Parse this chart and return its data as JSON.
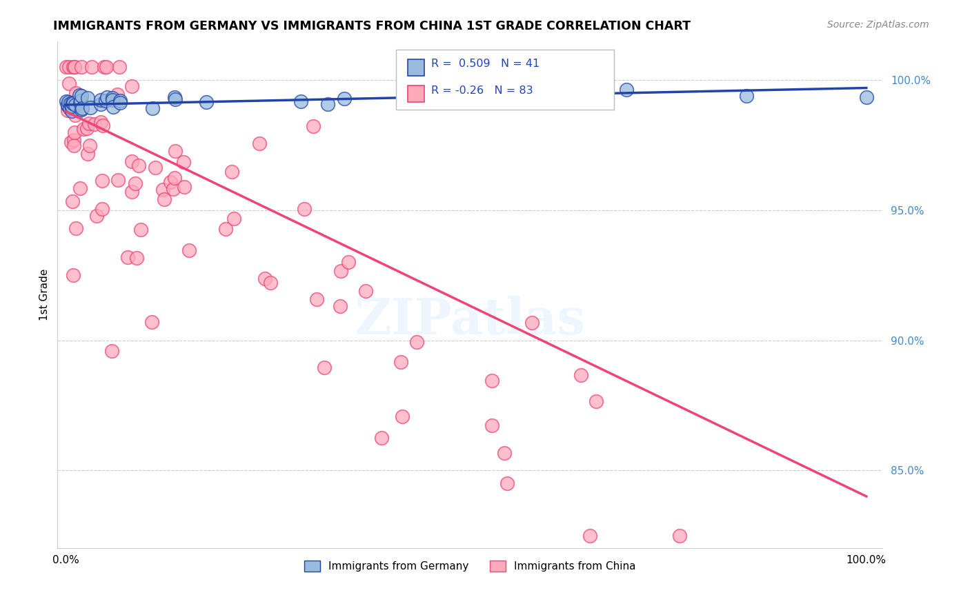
{
  "title": "IMMIGRANTS FROM GERMANY VS IMMIGRANTS FROM CHINA 1ST GRADE CORRELATION CHART",
  "source": "Source: ZipAtlas.com",
  "ylabel": "1st Grade",
  "legend_germany": "Immigrants from Germany",
  "legend_china": "Immigrants from China",
  "r_germany": 0.509,
  "n_germany": 41,
  "r_china": -0.26,
  "n_china": 83,
  "color_germany": "#99BBDD",
  "color_china": "#FFAABB",
  "trendline_germany": "#2244AA",
  "trendline_china": "#EE4477",
  "bg_color": "#FFFFFF",
  "grid_color": "#CCCCCC",
  "y_ticks": [
    0.85,
    0.9,
    0.95,
    1.0
  ],
  "y_tick_labels": [
    "85.0%",
    "90.0%",
    "95.0%",
    "100.0%"
  ],
  "xlim": [
    -0.01,
    1.02
  ],
  "ylim": [
    0.82,
    1.015
  ]
}
